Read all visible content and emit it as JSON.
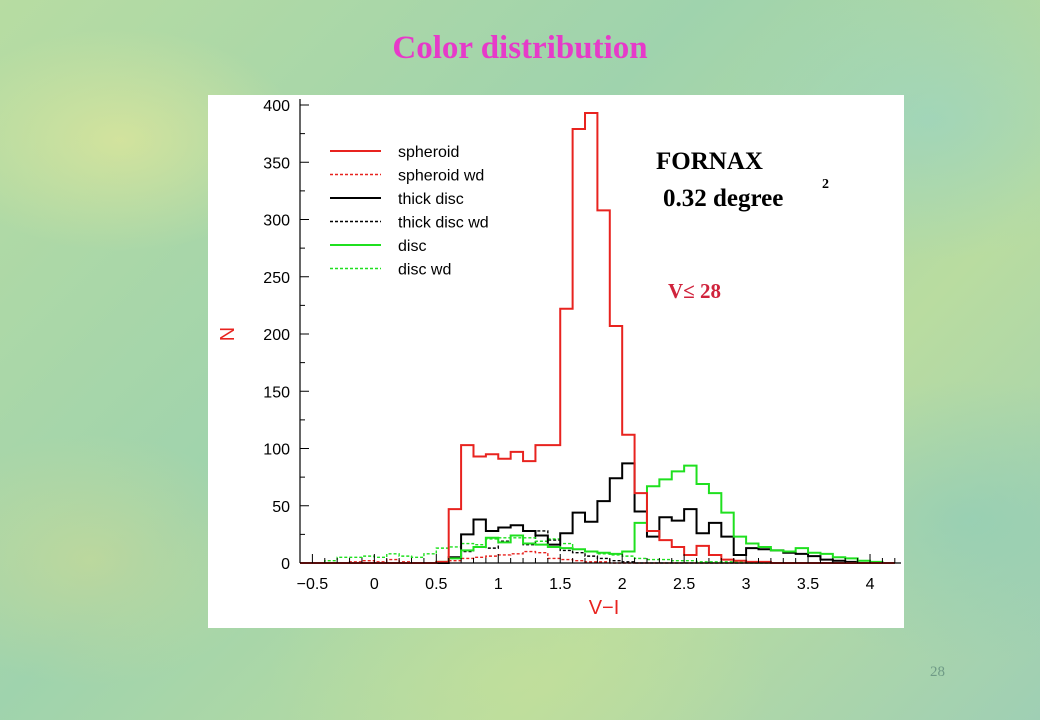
{
  "slide": {
    "title": "Color distribution",
    "page_number": "28"
  },
  "annotations": {
    "field": "FORNAX",
    "area": "0.32 degree",
    "area_superscript": "2",
    "magnitude_cut": "V≤ 28"
  },
  "colors": {
    "title": "#e63ac9",
    "spheroid": "#e8231f",
    "thick_disc": "#000000",
    "disc": "#1fe01f",
    "magnitude_cut": "#d0233c"
  },
  "chart_data": {
    "type": "line",
    "style": "step-histogram",
    "title": "",
    "xlabel": "V−I",
    "ylabel": "N",
    "xlim": [
      -0.6,
      4.25
    ],
    "ylim": [
      0,
      400
    ],
    "xticks": [
      -0.5,
      0,
      0.5,
      1,
      1.5,
      2,
      2.5,
      3,
      3.5,
      4
    ],
    "xtick_labels": [
      "−0.5",
      "0",
      "0.5",
      "1",
      "1.5",
      "2",
      "2.5",
      "3",
      "3.5",
      "4"
    ],
    "yticks": [
      0,
      50,
      100,
      150,
      200,
      250,
      300,
      350,
      400
    ],
    "ytick_labels": [
      "0",
      "50",
      "100",
      "150",
      "200",
      "250",
      "300",
      "350",
      "400"
    ],
    "legend_position": "top-left",
    "bin_edges": [
      -0.6,
      -0.5,
      -0.4,
      -0.3,
      -0.2,
      -0.1,
      0.0,
      0.1,
      0.2,
      0.3,
      0.4,
      0.5,
      0.6,
      0.7,
      0.8,
      0.9,
      1.0,
      1.1,
      1.2,
      1.3,
      1.4,
      1.5,
      1.6,
      1.7,
      1.8,
      1.9,
      2.0,
      2.1,
      2.2,
      2.3,
      2.4,
      2.5,
      2.6,
      2.7,
      2.8,
      2.9,
      3.0,
      3.1,
      3.2,
      3.3,
      3.4,
      3.5,
      3.6,
      3.7,
      3.8,
      3.9,
      4.0,
      4.1,
      4.2
    ],
    "series": [
      {
        "name": "spheroid",
        "color": "#e8231f",
        "dash": "solid",
        "values": [
          0,
          0,
          0,
          0,
          0,
          0,
          0,
          0,
          0,
          0,
          0,
          1,
          47,
          103,
          93,
          95,
          91,
          97,
          89,
          103,
          103,
          222,
          379,
          393,
          308,
          207,
          112,
          61,
          28,
          20,
          14,
          7,
          15,
          7,
          3,
          2,
          1,
          1,
          0,
          0,
          0,
          0,
          0,
          0,
          0,
          0,
          0,
          0
        ]
      },
      {
        "name": "spheroid wd",
        "color": "#e8231f",
        "dash": "dashed",
        "values": [
          0,
          0,
          0,
          0,
          1,
          2,
          1,
          3,
          1,
          0,
          0,
          1,
          2,
          4,
          5,
          6,
          7,
          8,
          10,
          9,
          4,
          3,
          2,
          1,
          1,
          0,
          0,
          0,
          0,
          0,
          0,
          0,
          0,
          0,
          0,
          0,
          0,
          0,
          0,
          0,
          0,
          0,
          0,
          0,
          0,
          0,
          0,
          0
        ]
      },
      {
        "name": "thick disc",
        "color": "#000000",
        "dash": "solid",
        "values": [
          0,
          0,
          0,
          0,
          0,
          0,
          0,
          0,
          0,
          0,
          0,
          0,
          5,
          25,
          38,
          28,
          31,
          33,
          28,
          24,
          16,
          26,
          44,
          36,
          54,
          74,
          87,
          45,
          23,
          40,
          37,
          47,
          26,
          35,
          23,
          7,
          13,
          12,
          11,
          9,
          8,
          6,
          3,
          2,
          1,
          0,
          0,
          0
        ]
      },
      {
        "name": "thick disc wd",
        "color": "#000000",
        "dash": "dashed",
        "values": [
          0,
          0,
          0,
          0,
          0,
          0,
          0,
          0,
          0,
          0,
          0,
          1,
          5,
          10,
          14,
          13,
          19,
          24,
          16,
          28,
          20,
          11,
          9,
          6,
          4,
          2,
          1,
          0,
          0,
          0,
          0,
          0,
          0,
          0,
          0,
          0,
          0,
          0,
          0,
          0,
          0,
          0,
          0,
          0,
          0,
          0,
          0,
          0
        ]
      },
      {
        "name": "disc",
        "color": "#1fe01f",
        "dash": "solid",
        "values": [
          0,
          0,
          0,
          0,
          0,
          0,
          0,
          0,
          0,
          0,
          0,
          1,
          4,
          11,
          14,
          22,
          18,
          24,
          17,
          16,
          14,
          13,
          12,
          10,
          9,
          8,
          10,
          35,
          67,
          73,
          80,
          85,
          69,
          61,
          44,
          23,
          17,
          14,
          11,
          10,
          13,
          9,
          8,
          5,
          4,
          2,
          1,
          0
        ]
      },
      {
        "name": "disc wd",
        "color": "#1fe01f",
        "dash": "dashed",
        "values": [
          0,
          0,
          2,
          5,
          5,
          6,
          5,
          8,
          6,
          5,
          8,
          13,
          14,
          17,
          16,
          21,
          22,
          22,
          22,
          19,
          21,
          17,
          12,
          10,
          8,
          7,
          6,
          4,
          3,
          3,
          2,
          2,
          1,
          1,
          1,
          1,
          0,
          0,
          0,
          0,
          0,
          0,
          0,
          0,
          0,
          0,
          0,
          0
        ]
      }
    ]
  }
}
